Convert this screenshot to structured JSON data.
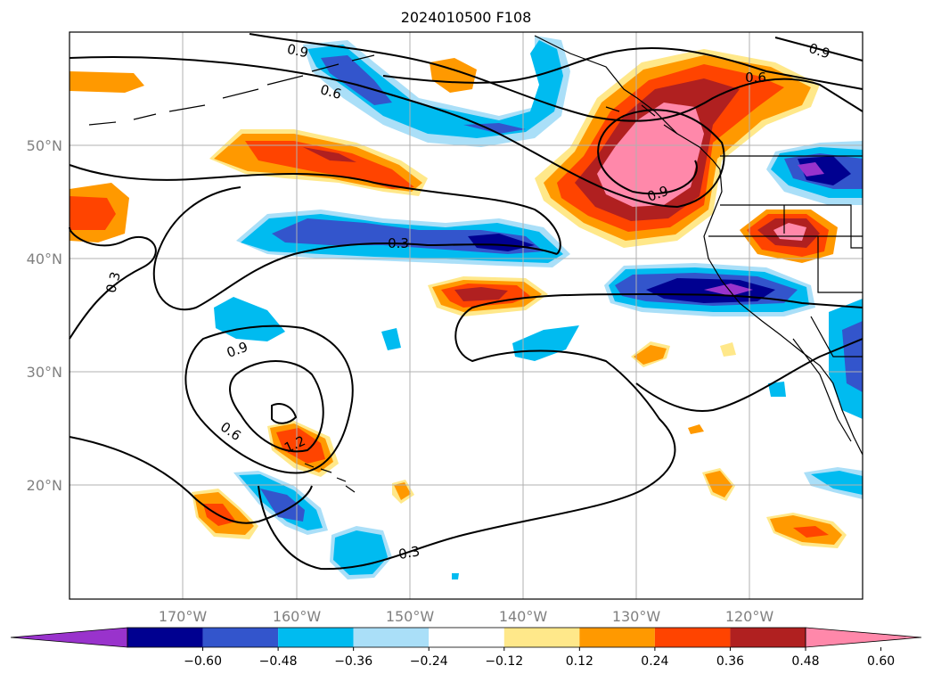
{
  "title": "2024010500 F108",
  "lon_labels": [
    "170°W",
    "160°W",
    "150°W",
    "140°W",
    "130°W",
    "120°W"
  ],
  "lat_labels": [
    "50°N",
    "40°N",
    "30°N",
    "20°N"
  ],
  "colorbar": {
    "ticks": [
      "−0.60",
      "−0.48",
      "−0.36",
      "−0.24",
      "−0.12",
      "0.12",
      "0.24",
      "0.36",
      "0.48",
      "0.60"
    ],
    "colors": [
      "#9933cc",
      "#000090",
      "#3355cc",
      "#00bbf0",
      "#aadff8",
      "#ffffff",
      "#ffe88a",
      "#ff9900",
      "#ff4400",
      "#b02020",
      "#ff88aa"
    ]
  },
  "contour_labels": {
    "c1": "0.9",
    "c2": "0.6",
    "c3": "0.6",
    "c4": "0.9",
    "c5": "0.9",
    "c6": "0.3",
    "c7": "0.3",
    "c8": "0.9",
    "c9": "0.6",
    "c10": "1.2",
    "c11": "0.3"
  }
}
